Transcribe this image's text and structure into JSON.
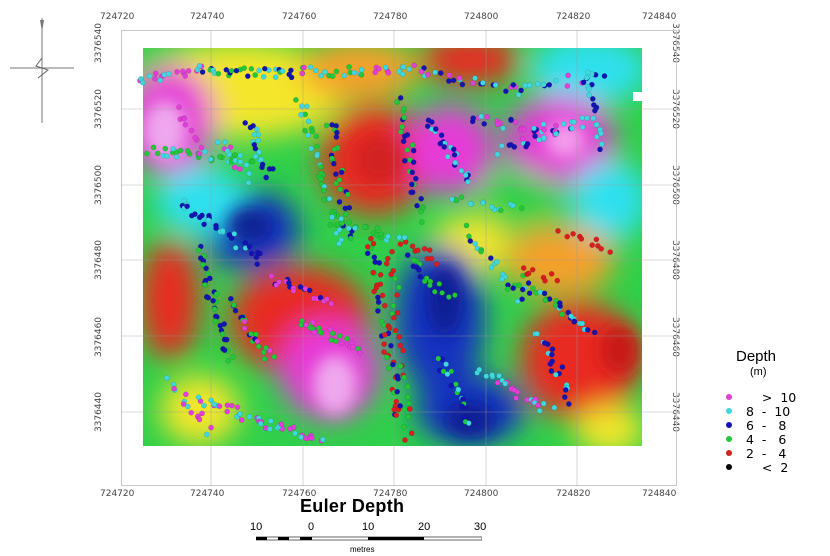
{
  "title": "Euler Depth",
  "x_ticks_top": [
    "724720",
    "724740",
    "724760",
    "724780",
    "724800",
    "724820",
    "724840"
  ],
  "x_ticks_bottom": [
    "724720",
    "724740",
    "724760",
    "724780",
    "724800",
    "724820",
    "724840"
  ],
  "y_ticks_left": [
    "3376540",
    "3376520",
    "3376500",
    "3376480",
    "3376460",
    "3376440"
  ],
  "y_ticks_right": [
    "3376540",
    "3376520",
    "3376500",
    "3376480",
    "3376460",
    "3376440"
  ],
  "scale_bar": {
    "labels": [
      "10",
      "0",
      "10",
      "20",
      "30"
    ],
    "unit": "metres"
  },
  "legend": {
    "title": "Depth",
    "unit": "(m)",
    "items": [
      {
        "range": "    >  10",
        "color": "#e23fd9"
      },
      {
        "range": "8  -  10",
        "color": "#3fd8e0"
      },
      {
        "range": "6  -   8",
        "color": "#1414b4"
      },
      {
        "range": "4  -   6",
        "color": "#22c83a"
      },
      {
        "range": "2  -   4",
        "color": "#d81e1e"
      },
      {
        "range": "    <  2",
        "color": "#000000"
      }
    ]
  },
  "colors": {
    "magenta": "#e63ad8",
    "cyan": "#2fe0ee",
    "blue": "#1530c0",
    "green": "#2fd04a",
    "yellow": "#f4e62a",
    "orange": "#f5a02a",
    "red": "#e82a20"
  }
}
